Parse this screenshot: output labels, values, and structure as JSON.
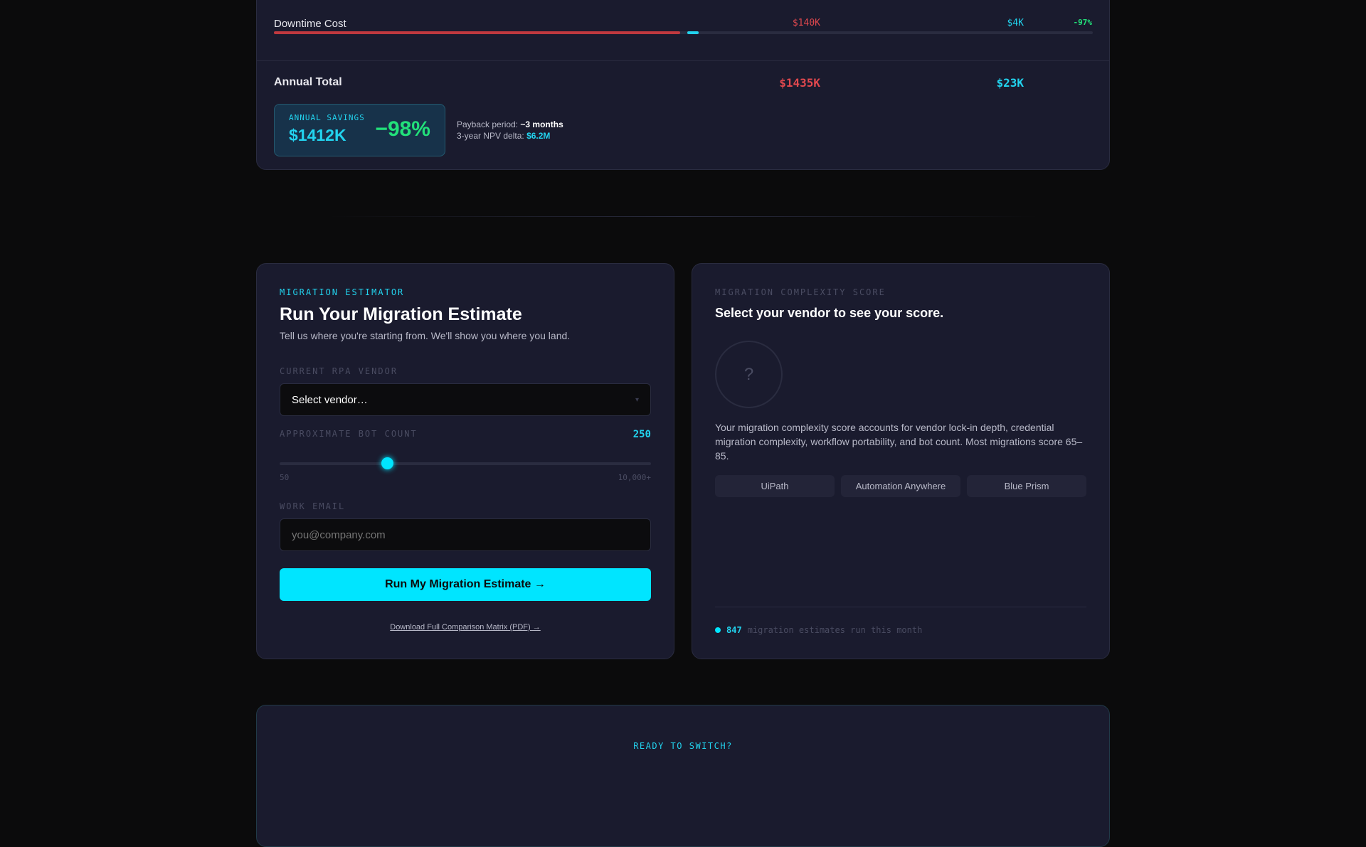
{
  "cost_table": {
    "row": {
      "label": "Downtime Cost",
      "old_value": "$140K",
      "new_value": "$4K",
      "delta": "-97%",
      "old_fraction": 0.5,
      "new_fraction": 0.014
    },
    "total": {
      "label": "Annual Total",
      "old_value": "$1435K",
      "new_value": "$23K"
    },
    "savings": {
      "label": "ANNUAL SAVINGS",
      "amount": "$1412K",
      "percent": "−98%"
    },
    "payback_label": "Payback period:",
    "payback_value": "~3 months",
    "npv_label": "3-year NPV delta:",
    "npv_value": "$6.2M"
  },
  "estimator": {
    "eyebrow": "MIGRATION ESTIMATOR",
    "title": "Run Your Migration Estimate",
    "subtitle": "Tell us where you're starting from. We'll show you where you land.",
    "vendor_label": "CURRENT RPA VENDOR",
    "vendor_value": "Select vendor…",
    "bot_label": "APPROXIMATE BOT COUNT",
    "bot_value": "250",
    "bot_min": "50",
    "bot_max": "10,000+",
    "slider_fraction": 0.29,
    "email_label": "WORK EMAIL",
    "email_placeholder": "you@company.com",
    "submit": "Run My Migration Estimate →",
    "download": "Download Full Comparison Matrix (PDF) →"
  },
  "score": {
    "eyebrow": "MIGRATION COMPLEXITY SCORE",
    "title": "Select your vendor to see your score.",
    "placeholder": "?",
    "description": "Your migration complexity score accounts for vendor lock-in depth, credential migration complexity, workflow portability, and bot count. Most migrations score 65–85.",
    "vendors": [
      "UiPath",
      "Automation Anywhere",
      "Blue Prism"
    ],
    "count": "847",
    "count_text": "migration estimates run this month"
  },
  "cta": {
    "eyebrow": "READY TO SWITCH?"
  },
  "colors": {
    "accent": "#00e5ff",
    "old": "#e0484e",
    "positive": "#22e07a",
    "card": "#1a1b2e",
    "bg": "#0b0b0c"
  }
}
